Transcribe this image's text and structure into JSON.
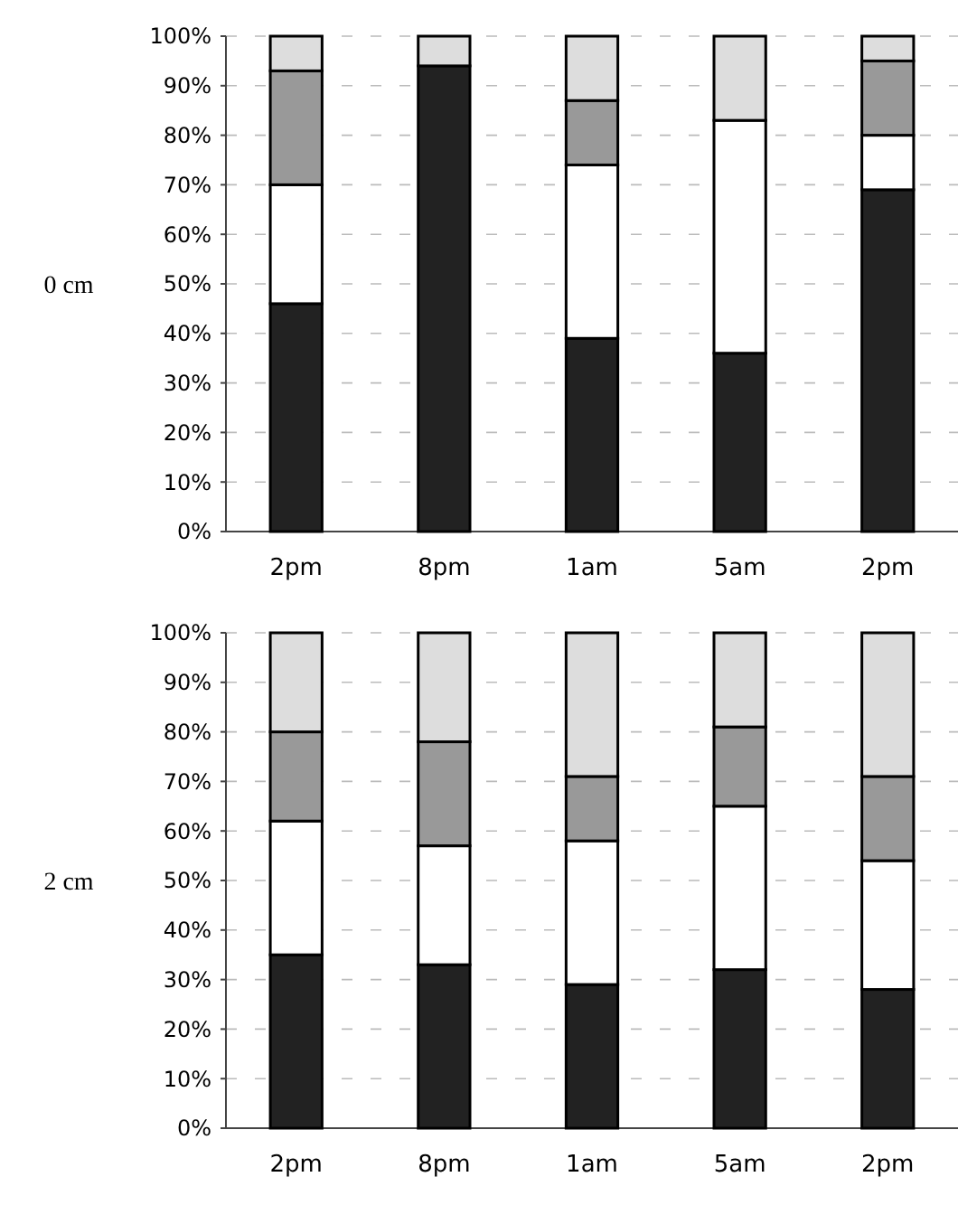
{
  "chart_data": [
    {
      "type": "bar",
      "stacked": true,
      "ylabel": "0 cm",
      "categories": [
        "2pm",
        "8pm",
        "1am",
        "5am",
        "2pm"
      ],
      "ylim": [
        0,
        100
      ],
      "yticks": [
        {
          "value": 0,
          "label": "0%"
        },
        {
          "value": 10,
          "label": "10%"
        },
        {
          "value": 20,
          "label": "20%"
        },
        {
          "value": 30,
          "label": "30%"
        },
        {
          "value": 40,
          "label": "40%"
        },
        {
          "value": 50,
          "label": "50%"
        },
        {
          "value": 60,
          "label": "60%"
        },
        {
          "value": 70,
          "label": "70%"
        },
        {
          "value": 80,
          "label": "80%"
        },
        {
          "value": 90,
          "label": "90%"
        },
        {
          "value": 100,
          "label": "100%"
        }
      ],
      "grid": "y",
      "series": [
        {
          "color": "#222222",
          "values": [
            46,
            94,
            39,
            36,
            69
          ]
        },
        {
          "color": "#ffffff",
          "values": [
            24,
            0,
            35,
            47,
            11
          ]
        },
        {
          "color": "#999999",
          "values": [
            23,
            0,
            13,
            0,
            15
          ]
        },
        {
          "color": "#dddddd",
          "values": [
            7,
            6,
            13,
            17,
            5
          ]
        }
      ]
    },
    {
      "type": "bar",
      "stacked": true,
      "ylabel": "2 cm",
      "categories": [
        "2pm",
        "8pm",
        "1am",
        "5am",
        "2pm"
      ],
      "ylim": [
        0,
        100
      ],
      "yticks": [
        {
          "value": 0,
          "label": "0%"
        },
        {
          "value": 10,
          "label": "10%"
        },
        {
          "value": 20,
          "label": "20%"
        },
        {
          "value": 30,
          "label": "30%"
        },
        {
          "value": 40,
          "label": "40%"
        },
        {
          "value": 50,
          "label": "50%"
        },
        {
          "value": 60,
          "label": "60%"
        },
        {
          "value": 70,
          "label": "70%"
        },
        {
          "value": 80,
          "label": "80%"
        },
        {
          "value": 90,
          "label": "90%"
        },
        {
          "value": 100,
          "label": "100%"
        }
      ],
      "grid": "y",
      "series": [
        {
          "color": "#222222",
          "values": [
            35,
            33,
            29,
            32,
            28
          ]
        },
        {
          "color": "#ffffff",
          "values": [
            27,
            24,
            29,
            33,
            26
          ]
        },
        {
          "color": "#999999",
          "values": [
            18,
            21,
            13,
            16,
            17
          ]
        },
        {
          "color": "#dddddd",
          "values": [
            20,
            22,
            29,
            19,
            29
          ]
        }
      ]
    }
  ]
}
